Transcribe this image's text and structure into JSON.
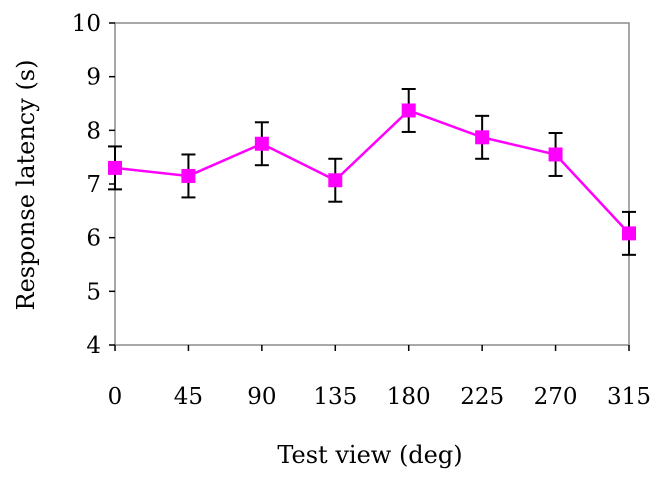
{
  "chart_data": {
    "type": "line",
    "xlabel": "Test view (deg)",
    "ylabel": "Response latency (s)",
    "categories": [
      "0",
      "45",
      "90",
      "135",
      "180",
      "225",
      "270",
      "315"
    ],
    "ylim": [
      4,
      10
    ],
    "yticks": [
      "4",
      "5",
      "6",
      "7",
      "8",
      "9",
      "10"
    ],
    "grid": false,
    "series": [
      {
        "values": [
          7.3,
          7.15,
          7.75,
          7.07,
          8.37,
          7.87,
          7.55,
          6.08
        ],
        "errors": [
          0.4,
          0.4,
          0.4,
          0.4,
          0.4,
          0.4,
          0.4,
          0.4
        ],
        "color": "#ff00ff",
        "marker": "square"
      }
    ]
  }
}
